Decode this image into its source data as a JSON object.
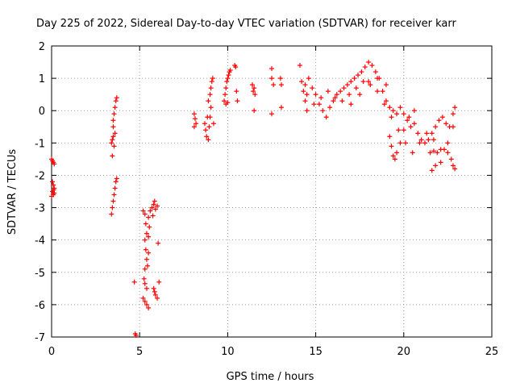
{
  "chart_data": {
    "type": "scatter",
    "title": "Day 225 of 2022, Sidereal Day-to-day VTEC variation (SDTVAR) for receiver karr",
    "xlabel": "GPS time / hours",
    "ylabel": "SDTVAR / TECUs",
    "xlim": [
      0,
      25
    ],
    "ylim": [
      -7,
      2
    ],
    "xticks": [
      "0",
      "5",
      "10",
      "15",
      "20",
      "25"
    ],
    "yticks": [
      "2",
      "1",
      "0",
      "-1",
      "-2",
      "-3",
      "-4",
      "-5",
      "-6",
      "-7"
    ],
    "grid": true,
    "marker_color": "#ff0000",
    "series": [
      {
        "name": "SDTVAR",
        "points": [
          [
            0.0,
            -1.5
          ],
          [
            0.05,
            -1.55
          ],
          [
            0.1,
            -1.6
          ],
          [
            0.15,
            -1.65
          ],
          [
            0.05,
            -2.2
          ],
          [
            0.1,
            -2.3
          ],
          [
            0.15,
            -2.4
          ],
          [
            0.05,
            -2.5
          ],
          [
            0.1,
            -2.6
          ],
          [
            0.15,
            -2.55
          ],
          [
            0.0,
            -2.65
          ],
          [
            0.12,
            -2.45
          ],
          [
            3.4,
            -3.2
          ],
          [
            3.45,
            -3.0
          ],
          [
            3.5,
            -2.8
          ],
          [
            3.55,
            -2.6
          ],
          [
            3.6,
            -2.4
          ],
          [
            3.65,
            -2.2
          ],
          [
            3.7,
            -2.1
          ],
          [
            3.4,
            -1.0
          ],
          [
            3.45,
            -0.9
          ],
          [
            3.5,
            -0.8
          ],
          [
            3.55,
            -1.1
          ],
          [
            3.6,
            -0.7
          ],
          [
            3.45,
            -1.4
          ],
          [
            3.5,
            -0.3
          ],
          [
            3.55,
            -0.1
          ],
          [
            3.6,
            0.1
          ],
          [
            3.65,
            0.3
          ],
          [
            3.7,
            0.4
          ],
          [
            3.5,
            -0.5
          ],
          [
            4.7,
            -5.3
          ],
          [
            4.75,
            -6.9
          ],
          [
            4.8,
            -6.95
          ],
          [
            5.2,
            -3.1
          ],
          [
            5.3,
            -3.2
          ],
          [
            5.35,
            -3.5
          ],
          [
            5.4,
            -3.8
          ],
          [
            5.3,
            -4.0
          ],
          [
            5.35,
            -4.3
          ],
          [
            5.4,
            -4.6
          ],
          [
            5.3,
            -4.9
          ],
          [
            5.25,
            -5.2
          ],
          [
            5.3,
            -5.35
          ],
          [
            5.4,
            -5.5
          ],
          [
            5.2,
            -5.8
          ],
          [
            5.3,
            -5.9
          ],
          [
            5.4,
            -6.0
          ],
          [
            5.5,
            -6.1
          ],
          [
            5.45,
            -4.8
          ],
          [
            5.5,
            -4.4
          ],
          [
            5.5,
            -3.9
          ],
          [
            5.55,
            -3.6
          ],
          [
            5.5,
            -3.3
          ],
          [
            5.6,
            -3.1
          ],
          [
            5.7,
            -3.0
          ],
          [
            5.8,
            -2.9
          ],
          [
            5.85,
            -2.8
          ],
          [
            5.9,
            -3.05
          ],
          [
            6.0,
            -2.95
          ],
          [
            5.75,
            -3.25
          ],
          [
            5.8,
            -5.5
          ],
          [
            5.85,
            -5.6
          ],
          [
            5.9,
            -5.7
          ],
          [
            6.0,
            -5.8
          ],
          [
            6.05,
            -4.1
          ],
          [
            6.1,
            -5.3
          ],
          [
            8.1,
            -0.1
          ],
          [
            8.15,
            -0.25
          ],
          [
            8.2,
            -0.4
          ],
          [
            8.1,
            -0.5
          ],
          [
            8.7,
            -0.4
          ],
          [
            8.75,
            -0.6
          ],
          [
            8.8,
            -0.8
          ],
          [
            8.9,
            -0.9
          ],
          [
            8.95,
            -0.5
          ],
          [
            9.0,
            -0.2
          ],
          [
            9.05,
            0.1
          ],
          [
            8.9,
            0.3
          ],
          [
            9.0,
            0.5
          ],
          [
            9.05,
            0.7
          ],
          [
            9.1,
            0.9
          ],
          [
            9.15,
            1.0
          ],
          [
            8.85,
            -0.2
          ],
          [
            9.2,
            -0.4
          ],
          [
            9.8,
            0.3
          ],
          [
            9.85,
            0.5
          ],
          [
            9.9,
            0.7
          ],
          [
            9.95,
            0.9
          ],
          [
            10.0,
            1.0
          ],
          [
            10.05,
            1.1
          ],
          [
            10.1,
            1.2
          ],
          [
            10.15,
            1.25
          ],
          [
            9.9,
            0.2
          ],
          [
            10.0,
            0.25
          ],
          [
            10.4,
            1.4
          ],
          [
            10.45,
            1.35
          ],
          [
            10.5,
            0.6
          ],
          [
            10.55,
            0.3
          ],
          [
            11.4,
            0.8
          ],
          [
            11.45,
            0.6
          ],
          [
            11.5,
            0.7
          ],
          [
            11.55,
            0.5
          ],
          [
            11.5,
            0.0
          ],
          [
            12.5,
            1.3
          ],
          [
            12.5,
            1.0
          ],
          [
            12.6,
            0.8
          ],
          [
            12.5,
            -0.1
          ],
          [
            13.0,
            1.0
          ],
          [
            13.05,
            0.8
          ],
          [
            13.05,
            0.1
          ],
          [
            14.1,
            1.4
          ],
          [
            14.2,
            0.9
          ],
          [
            14.3,
            0.6
          ],
          [
            14.4,
            0.3
          ],
          [
            14.5,
            0.0
          ],
          [
            14.4,
            0.8
          ],
          [
            14.6,
            1.0
          ],
          [
            14.8,
            0.7
          ],
          [
            15.0,
            0.5
          ],
          [
            15.2,
            0.2
          ],
          [
            15.4,
            0.0
          ],
          [
            15.6,
            -0.2
          ],
          [
            15.8,
            0.1
          ],
          [
            16.0,
            0.3
          ],
          [
            16.2,
            0.5
          ],
          [
            16.4,
            0.6
          ],
          [
            16.6,
            0.7
          ],
          [
            16.8,
            0.8
          ],
          [
            17.0,
            0.9
          ],
          [
            17.2,
            1.0
          ],
          [
            17.4,
            1.1
          ],
          [
            17.6,
            1.2
          ],
          [
            17.8,
            1.35
          ],
          [
            18.0,
            1.5
          ],
          [
            18.2,
            1.4
          ],
          [
            18.4,
            1.2
          ],
          [
            18.6,
            1.0
          ],
          [
            18.8,
            0.6
          ],
          [
            19.0,
            0.3
          ],
          [
            19.2,
            0.1
          ],
          [
            19.4,
            0.0
          ],
          [
            19.6,
            -0.1
          ],
          [
            19.8,
            0.1
          ],
          [
            20.0,
            -0.1
          ],
          [
            20.2,
            -0.3
          ],
          [
            20.4,
            -0.5
          ],
          [
            20.6,
            -0.4
          ],
          [
            20.8,
            -0.7
          ],
          [
            21.0,
            -0.9
          ],
          [
            21.2,
            -1.0
          ],
          [
            21.4,
            -0.9
          ],
          [
            21.6,
            -0.7
          ],
          [
            21.8,
            -0.5
          ],
          [
            22.0,
            -0.3
          ],
          [
            22.2,
            -0.2
          ],
          [
            22.4,
            -0.4
          ],
          [
            22.6,
            -0.5
          ],
          [
            22.8,
            -0.1
          ],
          [
            22.9,
            0.1
          ],
          [
            14.5,
            0.5
          ],
          [
            14.9,
            0.2
          ],
          [
            15.3,
            0.4
          ],
          [
            15.7,
            0.6
          ],
          [
            16.1,
            0.4
          ],
          [
            16.5,
            0.3
          ],
          [
            16.9,
            0.5
          ],
          [
            17.3,
            0.7
          ],
          [
            17.7,
            0.9
          ],
          [
            18.1,
            0.8
          ],
          [
            18.5,
            0.6
          ],
          [
            18.9,
            0.2
          ],
          [
            19.3,
            -0.2
          ],
          [
            19.7,
            -0.6
          ],
          [
            20.1,
            -1.0
          ],
          [
            20.5,
            -1.3
          ],
          [
            20.9,
            -1.0
          ],
          [
            21.3,
            -0.7
          ],
          [
            21.7,
            -0.9
          ],
          [
            22.1,
            -1.2
          ],
          [
            22.5,
            -1.0
          ],
          [
            22.8,
            -0.5
          ],
          [
            17.0,
            0.2
          ],
          [
            17.5,
            0.5
          ],
          [
            18.0,
            0.9
          ],
          [
            18.5,
            1.0
          ],
          [
            19.0,
            0.8
          ],
          [
            19.2,
            -0.8
          ],
          [
            19.3,
            -1.1
          ],
          [
            19.4,
            -1.4
          ],
          [
            19.5,
            -1.5
          ],
          [
            19.6,
            -1.3
          ],
          [
            19.8,
            -1.0
          ],
          [
            20.0,
            -0.6
          ],
          [
            20.3,
            -0.2
          ],
          [
            20.6,
            0.0
          ],
          [
            21.5,
            -1.3
          ],
          [
            21.7,
            -1.25
          ],
          [
            21.9,
            -1.3
          ],
          [
            22.1,
            -1.6
          ],
          [
            21.8,
            -1.7
          ],
          [
            21.6,
            -1.85
          ],
          [
            22.3,
            -1.2
          ],
          [
            22.5,
            -1.3
          ],
          [
            22.7,
            -1.5
          ],
          [
            22.8,
            -1.7
          ],
          [
            22.9,
            -1.8
          ]
        ]
      }
    ]
  }
}
